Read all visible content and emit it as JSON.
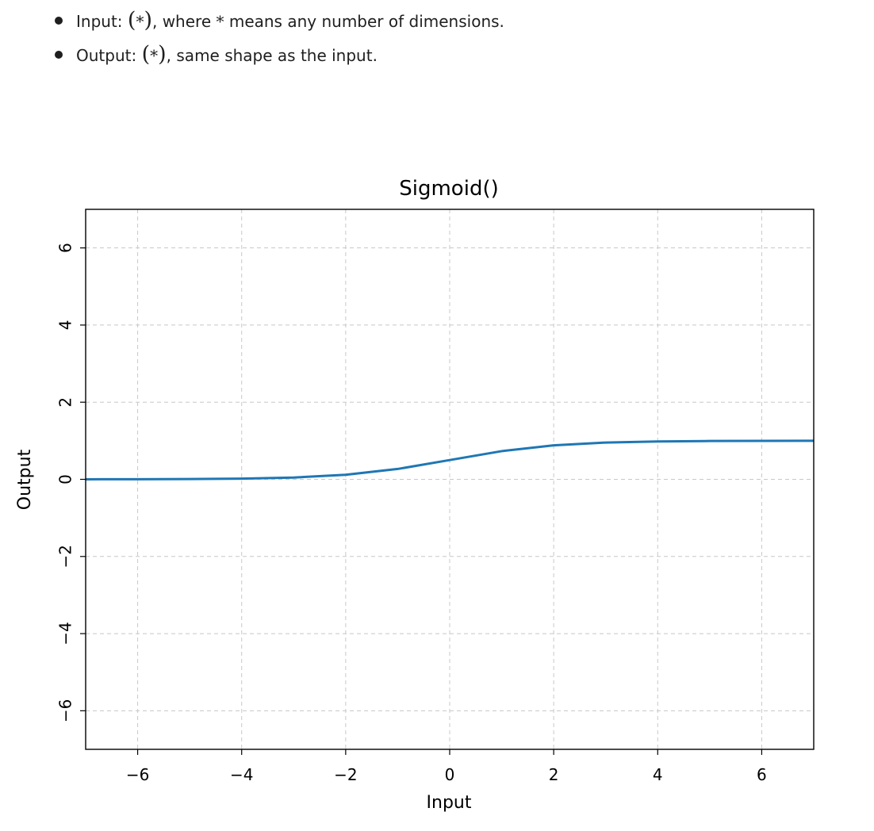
{
  "bullets": [
    {
      "label": "Input:",
      "symbol": "*",
      "description": ", where ",
      "symbol_mid": "*",
      "description_end": " means any number of dimensions."
    },
    {
      "label": "Output:",
      "symbol": "*",
      "description": ", same shape as the input."
    }
  ],
  "chart_data": {
    "type": "line",
    "title": "Sigmoid()",
    "xlabel": "Input",
    "ylabel": "Output",
    "xlim": [
      -7,
      7
    ],
    "ylim": [
      -7,
      7
    ],
    "xticks": [
      -6,
      -4,
      -2,
      0,
      2,
      4,
      6
    ],
    "yticks": [
      -6,
      -4,
      -2,
      0,
      2,
      4,
      6
    ],
    "tick_labels_x": [
      "−6",
      "−4",
      "−2",
      "0",
      "2",
      "4",
      "6"
    ],
    "tick_labels_y": [
      "−6",
      "−4",
      "−2",
      "0",
      "2",
      "4",
      "6"
    ],
    "grid": true,
    "grid_style": "dashed",
    "series": [
      {
        "color": "#1f77b4",
        "x": [
          -7,
          -6,
          -5,
          -4,
          -3,
          -2,
          -1,
          0,
          1,
          2,
          3,
          4,
          5,
          6,
          7
        ],
        "y": [
          0.0009,
          0.0025,
          0.0067,
          0.018,
          0.047,
          0.119,
          0.269,
          0.5,
          0.731,
          0.881,
          0.953,
          0.982,
          0.9933,
          0.9975,
          0.9991
        ]
      }
    ]
  }
}
